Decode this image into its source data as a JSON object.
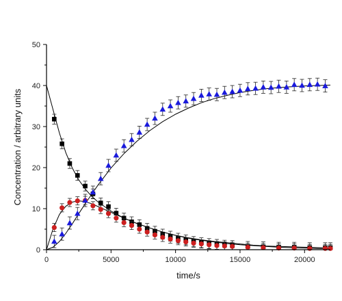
{
  "chart_data": {
    "type": "scatter",
    "title": "",
    "xlabel": "time/s",
    "ylabel": "Concentration / arbitrary units",
    "xlim": [
      0,
      22000
    ],
    "ylim": [
      0,
      50
    ],
    "x_ticks": [
      0,
      5000,
      10000,
      15000,
      20000
    ],
    "y_ticks": [
      0,
      10,
      20,
      30,
      40,
      50
    ],
    "x_tick_labels": [
      "0",
      "5000",
      "10000",
      "15000",
      "20000"
    ],
    "y_tick_labels": [
      "0",
      "10",
      "20",
      "30",
      "40",
      "50"
    ],
    "grid": false,
    "legend": "none",
    "series": [
      {
        "marker": "square",
        "color": "#000000",
        "error_bar": 1.2,
        "x": [
          600,
          1200,
          1800,
          2400,
          3000,
          3600,
          4200,
          4800,
          5400,
          6000,
          6600,
          7200,
          7800,
          8400,
          9000,
          9600,
          10200,
          10800,
          11400,
          12000,
          12600,
          13200,
          13800,
          14400,
          15600,
          16800,
          18000,
          19200,
          20400,
          21600,
          22000
        ],
        "y": [
          31.8,
          25.8,
          21.0,
          18.1,
          15.5,
          13.6,
          11.4,
          10.5,
          8.9,
          7.7,
          6.8,
          6.1,
          5.2,
          4.5,
          3.8,
          3.3,
          2.8,
          2.4,
          2.0,
          1.7,
          1.5,
          1.3,
          1.1,
          1.0,
          0.8,
          0.7,
          0.6,
          0.6,
          0.5,
          0.5,
          0.5
        ]
      },
      {
        "marker": "circle",
        "color": "#cc1f1f",
        "error_bar": 1.0,
        "x": [
          600,
          1200,
          1800,
          2400,
          3000,
          3600,
          4200,
          4800,
          5400,
          6000,
          6600,
          7200,
          7800,
          8400,
          9000,
          9600,
          10200,
          10800,
          11400,
          12000,
          12600,
          13200,
          13800,
          14400,
          15600,
          16800,
          18000,
          19200,
          20400,
          21600,
          22000
        ],
        "y": [
          5.4,
          10.2,
          11.5,
          11.9,
          12.0,
          10.7,
          9.8,
          8.8,
          7.7,
          6.6,
          5.9,
          5.0,
          4.3,
          3.6,
          3.0,
          2.6,
          2.2,
          1.9,
          1.6,
          1.4,
          1.2,
          1.0,
          0.9,
          0.8,
          0.6,
          0.5,
          0.4,
          0.4,
          0.3,
          0.3,
          0.3
        ]
      },
      {
        "marker": "triangle",
        "color": "#1a1adc",
        "error_bar": 1.5,
        "x": [
          600,
          1200,
          1800,
          2400,
          3000,
          3600,
          4200,
          4800,
          5400,
          6000,
          6600,
          7200,
          7800,
          8400,
          9000,
          9600,
          10200,
          10800,
          11400,
          12000,
          12600,
          13200,
          13800,
          14400,
          15000,
          15600,
          16200,
          16800,
          17400,
          18000,
          18600,
          19200,
          19800,
          20400,
          21000,
          21600
        ],
        "y": [
          2.0,
          3.8,
          6.5,
          8.8,
          12.0,
          14.0,
          17.3,
          20.5,
          23.0,
          25.3,
          26.8,
          28.6,
          30.5,
          32.0,
          34.2,
          35.0,
          35.8,
          36.2,
          36.8,
          37.6,
          37.9,
          37.8,
          38.3,
          38.5,
          38.8,
          39.2,
          39.3,
          39.6,
          39.5,
          39.8,
          39.6,
          40.2,
          40.0,
          40.2,
          40.3,
          39.9
        ]
      }
    ],
    "fit_curves": [
      {
        "color": "#000000",
        "x": [
          0,
          500,
          1000,
          1500,
          2000,
          2500,
          3000,
          3500,
          4000,
          5000,
          6000,
          7000,
          8000,
          9000,
          10000,
          11000,
          12000,
          13000,
          14000,
          15000,
          16000,
          17000,
          18000,
          19000,
          20000,
          21000,
          22000
        ],
        "y": [
          40.0,
          34.2,
          28.4,
          23.6,
          19.9,
          17.0,
          14.8,
          13.0,
          11.6,
          9.4,
          7.7,
          6.4,
          5.3,
          4.3,
          3.5,
          2.9,
          2.4,
          2.0,
          1.7,
          1.4,
          1.1,
          0.9,
          0.8,
          0.7,
          0.6,
          0.5,
          0.4
        ]
      },
      {
        "color": "#000000",
        "x": [
          0,
          500,
          1000,
          1500,
          2000,
          2500,
          3000,
          3500,
          4000,
          5000,
          6000,
          7000,
          8000,
          9000,
          10000,
          11000,
          12000,
          13000,
          14000,
          15000,
          16000,
          17000,
          18000,
          19000,
          20000,
          21000,
          22000
        ],
        "y": [
          0.0,
          5.0,
          8.6,
          10.6,
          11.6,
          11.9,
          11.7,
          11.2,
          10.5,
          9.1,
          7.7,
          6.4,
          5.3,
          4.3,
          3.5,
          2.8,
          2.3,
          1.9,
          1.5,
          1.2,
          1.0,
          0.8,
          0.6,
          0.5,
          0.4,
          0.3,
          0.3
        ]
      },
      {
        "color": "#000000",
        "x": [
          0,
          500,
          1000,
          1500,
          2000,
          2500,
          3000,
          3500,
          4000,
          5000,
          6000,
          7000,
          8000,
          9000,
          10000,
          11000,
          12000,
          13000,
          14000,
          15000,
          16000,
          17000,
          18000,
          19000,
          20000,
          21000,
          22000
        ],
        "y": [
          0.0,
          0.6,
          2.0,
          4.0,
          6.3,
          8.8,
          11.2,
          13.5,
          15.8,
          19.9,
          23.4,
          26.4,
          29.0,
          31.2,
          33.0,
          34.5,
          35.8,
          36.8,
          37.6,
          38.3,
          38.8,
          39.2,
          39.5,
          39.7,
          39.9,
          40.0,
          40.1
        ]
      }
    ]
  }
}
